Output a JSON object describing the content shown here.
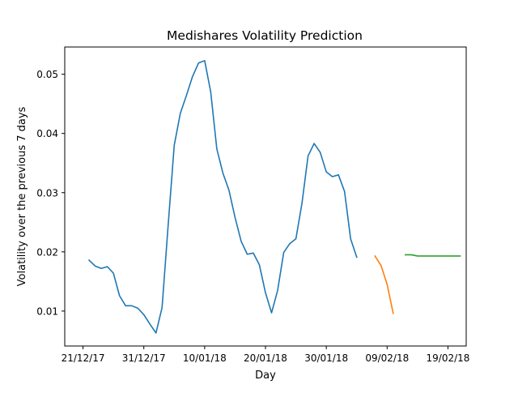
{
  "chart_data": {
    "type": "line",
    "title": "Medishares Volatility Prediction",
    "xlabel": "Day",
    "ylabel": "Volatility over the previous 7 days",
    "x_axis_type": "date",
    "xlim": [
      "2017-12-18",
      "2018-02-22"
    ],
    "ylim": [
      0.0041,
      0.0546
    ],
    "x_ticks": [
      {
        "date": "2017-12-21",
        "label": "21/12/17"
      },
      {
        "date": "2017-12-31",
        "label": "31/12/17"
      },
      {
        "date": "2018-01-10",
        "label": "10/01/18"
      },
      {
        "date": "2018-01-20",
        "label": "20/01/18"
      },
      {
        "date": "2018-01-30",
        "label": "30/01/18"
      },
      {
        "date": "2018-02-09",
        "label": "09/02/18"
      },
      {
        "date": "2018-02-19",
        "label": "19/02/18"
      }
    ],
    "y_ticks": [
      {
        "value": 0.01,
        "label": "0.01"
      },
      {
        "value": 0.02,
        "label": "0.02"
      },
      {
        "value": 0.03,
        "label": "0.03"
      },
      {
        "value": 0.04,
        "label": "0.04"
      },
      {
        "value": 0.05,
        "label": "0.05"
      }
    ],
    "grid": false,
    "series": [
      {
        "color": "#1f77b4",
        "points": [
          [
            "2017-12-22",
            0.0186
          ],
          [
            "2017-12-23",
            0.0176
          ],
          [
            "2017-12-24",
            0.0172
          ],
          [
            "2017-12-25",
            0.0175
          ],
          [
            "2017-12-26",
            0.0164
          ],
          [
            "2017-12-27",
            0.0126
          ],
          [
            "2017-12-28",
            0.0109
          ],
          [
            "2017-12-29",
            0.0109
          ],
          [
            "2017-12-30",
            0.0105
          ],
          [
            "2017-12-31",
            0.0094
          ],
          [
            "2018-01-01",
            0.0078
          ],
          [
            "2018-01-02",
            0.0063
          ],
          [
            "2018-01-03",
            0.0106
          ],
          [
            "2018-01-04",
            0.0245
          ],
          [
            "2018-01-05",
            0.038
          ],
          [
            "2018-01-06",
            0.0434
          ],
          [
            "2018-01-07",
            0.0464
          ],
          [
            "2018-01-08",
            0.0496
          ],
          [
            "2018-01-09",
            0.0519
          ],
          [
            "2018-01-10",
            0.0523
          ],
          [
            "2018-01-11",
            0.047
          ],
          [
            "2018-01-12",
            0.0374
          ],
          [
            "2018-01-13",
            0.0333
          ],
          [
            "2018-01-14",
            0.0304
          ],
          [
            "2018-01-15",
            0.0258
          ],
          [
            "2018-01-16",
            0.0218
          ],
          [
            "2018-01-17",
            0.0196
          ],
          [
            "2018-01-18",
            0.0198
          ],
          [
            "2018-01-19",
            0.0178
          ],
          [
            "2018-01-20",
            0.0131
          ],
          [
            "2018-01-21",
            0.0097
          ],
          [
            "2018-01-22",
            0.0135
          ],
          [
            "2018-01-23",
            0.0199
          ],
          [
            "2018-01-24",
            0.0214
          ],
          [
            "2018-01-25",
            0.0222
          ],
          [
            "2018-01-26",
            0.0282
          ],
          [
            "2018-01-27",
            0.0362
          ],
          [
            "2018-01-28",
            0.0383
          ],
          [
            "2018-01-29",
            0.0368
          ],
          [
            "2018-01-30",
            0.0335
          ],
          [
            "2018-01-31",
            0.0327
          ],
          [
            "2018-02-01",
            0.033
          ],
          [
            "2018-02-02",
            0.0302
          ],
          [
            "2018-02-03",
            0.0222
          ],
          [
            "2018-02-04",
            0.0191
          ]
        ]
      },
      {
        "color": "#ff7f0e",
        "points": [
          [
            "2018-02-07",
            0.0193
          ],
          [
            "2018-02-08",
            0.0177
          ],
          [
            "2018-02-09",
            0.0145
          ],
          [
            "2018-02-10",
            0.0096
          ]
        ]
      },
      {
        "color": "#2ca02c",
        "points": [
          [
            "2018-02-12",
            0.0195
          ],
          [
            "2018-02-13",
            0.0195
          ],
          [
            "2018-02-14",
            0.0193
          ],
          [
            "2018-02-15",
            0.0193
          ],
          [
            "2018-02-16",
            0.0193
          ],
          [
            "2018-02-17",
            0.0193
          ],
          [
            "2018-02-18",
            0.0193
          ],
          [
            "2018-02-19",
            0.0193
          ],
          [
            "2018-02-20",
            0.0193
          ],
          [
            "2018-02-21",
            0.0193
          ]
        ]
      }
    ]
  }
}
